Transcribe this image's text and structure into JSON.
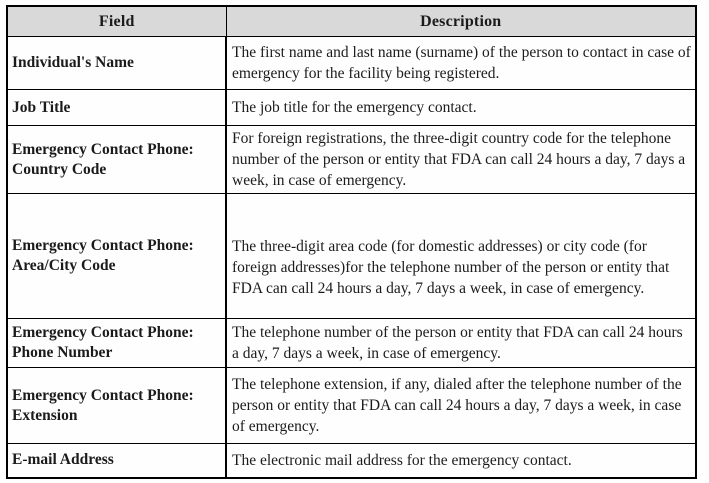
{
  "table": {
    "headers": [
      "Field",
      "Description"
    ],
    "rows": [
      {
        "field": "Individual's Name",
        "description": "The first name and last name (surname) of the person to contact in case of emergency for the facility being registered."
      },
      {
        "field": "Job Title",
        "description": "The job title for the emergency contact."
      },
      {
        "field": "Emergency Contact Phone: Country Code",
        "description": "For foreign registrations, the three-digit country code for the telephone number of the person or entity that FDA can call 24 hours a day, 7 days a week, in case of emergency."
      },
      {
        "field": "Emergency Contact Phone: Area/City Code",
        "description": "The three-digit area code (for domestic addresses) or city code (for foreign addresses)for the telephone number of the person or entity that FDA can call 24 hours a day, 7 days a week, in case of emergency."
      },
      {
        "field": "Emergency Contact Phone: Phone Number",
        "description": "The telephone number of the person or entity that FDA can call 24 hours a day, 7 days a week, in case of emergency."
      },
      {
        "field": "Emergency Contact Phone: Extension",
        "description": "The telephone extension, if any, dialed after the telephone number of the person or entity that FDA can call 24 hours a day, 7 days a week, in case of emergency."
      },
      {
        "field": "E-mail Address",
        "description": "The electronic mail address for the emergency contact."
      }
    ],
    "colors": {
      "header_bg": "#d9d9d9",
      "border": "#000000",
      "text": "#1b1b1b"
    }
  }
}
